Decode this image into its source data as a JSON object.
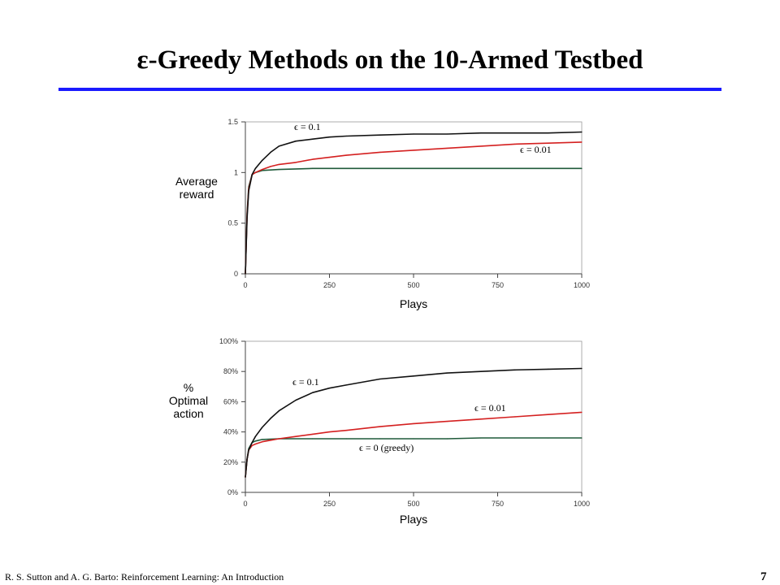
{
  "slide": {
    "title": "ε-Greedy Methods on the 10-Armed Testbed",
    "footer": "R. S. Sutton and A. G. Barto: Reinforcement Learning: An Introduction",
    "page_number": "7",
    "rule_color": "#1a1aff"
  },
  "chart_data": [
    {
      "type": "line",
      "xlabel": "Plays",
      "ylabel": [
        "Average",
        "reward"
      ],
      "xlim": [
        0,
        1000
      ],
      "ylim": [
        0,
        1.5
      ],
      "x_ticks": [
        0,
        250,
        500,
        750,
        1000
      ],
      "x_tick_labels": [
        "0",
        "250",
        "500",
        "750",
        "1000"
      ],
      "y_ticks": [
        0,
        0.5,
        1,
        1.5
      ],
      "y_tick_labels": [
        "0",
        "0.5",
        "1",
        "1.5"
      ],
      "grid": false,
      "series": [
        {
          "name": "ε = 0.1",
          "color": "#111111",
          "x": [
            0,
            5,
            10,
            20,
            30,
            50,
            75,
            100,
            150,
            200,
            250,
            300,
            400,
            500,
            600,
            700,
            800,
            900,
            1000
          ],
          "y": [
            0,
            0.55,
            0.82,
            0.98,
            1.04,
            1.12,
            1.2,
            1.26,
            1.31,
            1.33,
            1.35,
            1.36,
            1.37,
            1.38,
            1.38,
            1.39,
            1.39,
            1.39,
            1.4
          ]
        },
        {
          "name": "ε = 0.01",
          "color": "#d42020",
          "x": [
            0,
            5,
            10,
            20,
            30,
            50,
            75,
            100,
            150,
            200,
            250,
            300,
            400,
            500,
            600,
            700,
            800,
            900,
            1000
          ],
          "y": [
            0,
            0.58,
            0.84,
            0.98,
            1.0,
            1.03,
            1.06,
            1.08,
            1.1,
            1.13,
            1.15,
            1.17,
            1.2,
            1.22,
            1.24,
            1.26,
            1.28,
            1.29,
            1.3
          ]
        },
        {
          "name": "ε = 0",
          "color": "#1f5a3a",
          "x": [
            0,
            5,
            10,
            20,
            30,
            50,
            100,
            200,
            300,
            400,
            500,
            600,
            700,
            800,
            900,
            1000
          ],
          "y": [
            0,
            0.6,
            0.86,
            0.98,
            1.0,
            1.02,
            1.03,
            1.04,
            1.04,
            1.04,
            1.04,
            1.04,
            1.04,
            1.04,
            1.04,
            1.04
          ]
        }
      ],
      "annotations": [
        "ϵ = 0.1",
        "ϵ = 0.01"
      ]
    },
    {
      "type": "line",
      "xlabel": "Plays",
      "ylabel": [
        "%",
        "Optimal",
        "action"
      ],
      "xlim": [
        0,
        1000
      ],
      "ylim": [
        0,
        100
      ],
      "x_ticks": [
        0,
        250,
        500,
        750,
        1000
      ],
      "x_tick_labels": [
        "0",
        "250",
        "500",
        "750",
        "1000"
      ],
      "y_ticks": [
        0,
        20,
        40,
        60,
        80,
        100
      ],
      "y_tick_labels": [
        "0%",
        "20%",
        "40%",
        "60%",
        "80%",
        "100%"
      ],
      "grid": false,
      "series": [
        {
          "name": "ε = 0.1",
          "color": "#111111",
          "x": [
            0,
            5,
            10,
            20,
            30,
            50,
            75,
            100,
            150,
            200,
            250,
            300,
            400,
            500,
            600,
            700,
            800,
            900,
            1000
          ],
          "y": [
            10,
            22,
            28,
            33,
            37,
            43,
            49,
            54,
            61,
            66,
            69,
            71,
            75,
            77,
            79,
            80,
            81,
            81.5,
            82
          ]
        },
        {
          "name": "ε = 0.01",
          "color": "#d42020",
          "x": [
            0,
            5,
            10,
            20,
            30,
            50,
            75,
            100,
            150,
            200,
            250,
            300,
            400,
            500,
            600,
            700,
            800,
            900,
            1000
          ],
          "y": [
            10,
            22,
            28,
            31,
            32,
            33.5,
            34.5,
            35.5,
            37,
            38.5,
            40,
            41,
            43.5,
            45.5,
            47,
            48.5,
            50,
            51.5,
            53
          ]
        },
        {
          "name": "ε = 0",
          "color": "#1f5a3a",
          "x": [
            0,
            5,
            10,
            20,
            30,
            50,
            100,
            200,
            300,
            400,
            500,
            600,
            700,
            800,
            900,
            1000
          ],
          "y": [
            10,
            22,
            29,
            33,
            34,
            35,
            35.5,
            35.5,
            35.5,
            35.5,
            35.5,
            35.5,
            36,
            36,
            36,
            36
          ]
        }
      ],
      "annotations": [
        "ϵ = 0.1",
        "ϵ = 0.01",
        "ϵ = 0 (greedy)"
      ]
    }
  ]
}
